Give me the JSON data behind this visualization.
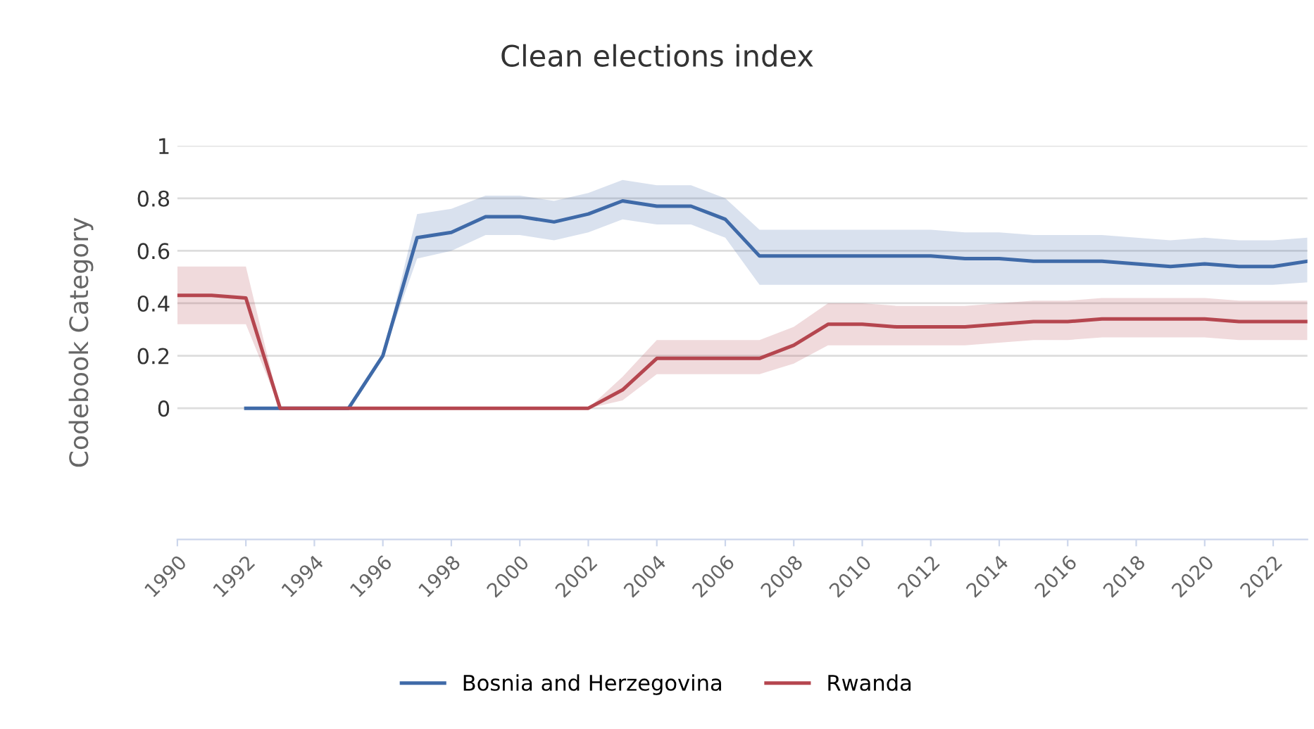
{
  "chart_data": {
    "type": "line",
    "title": "Clean elections index",
    "ylabel": "Codebook Category",
    "x": [
      1990,
      1991,
      1992,
      1993,
      1994,
      1995,
      1996,
      1997,
      1998,
      1999,
      2000,
      2001,
      2002,
      2003,
      2004,
      2005,
      2006,
      2007,
      2008,
      2009,
      2010,
      2011,
      2012,
      2013,
      2014,
      2015,
      2016,
      2017,
      2018,
      2019,
      2020,
      2021,
      2022,
      2023
    ],
    "xlim": [
      1990,
      2023
    ],
    "xticks": [
      1990,
      1992,
      1994,
      1996,
      1998,
      2000,
      2002,
      2004,
      2006,
      2008,
      2010,
      2012,
      2014,
      2016,
      2018,
      2020,
      2022
    ],
    "ylim": [
      -0.5,
      1
    ],
    "yticks": [
      0,
      0.2,
      0.4,
      0.6,
      0.8,
      1
    ],
    "grid": "y",
    "legend": "bottom",
    "marker": "none",
    "line_style": "solid",
    "series": [
      {
        "name": "Bosnia and Herzegovina",
        "color": "#3f6aa8",
        "values": [
          null,
          null,
          0,
          0,
          0,
          0,
          0.2,
          0.65,
          0.67,
          0.73,
          0.73,
          0.71,
          0.74,
          0.79,
          0.77,
          0.77,
          0.72,
          0.58,
          0.58,
          0.58,
          0.58,
          0.58,
          0.58,
          0.57,
          0.57,
          0.56,
          0.56,
          0.56,
          0.55,
          0.54,
          0.55,
          0.54,
          0.54,
          0.56
        ],
        "lower": [
          null,
          null,
          0,
          0,
          0,
          0,
          0.2,
          0.57,
          0.6,
          0.66,
          0.66,
          0.64,
          0.67,
          0.72,
          0.7,
          0.7,
          0.65,
          0.47,
          0.47,
          0.47,
          0.47,
          0.47,
          0.47,
          0.47,
          0.47,
          0.47,
          0.47,
          0.47,
          0.47,
          0.47,
          0.47,
          0.47,
          0.47,
          0.48
        ],
        "upper": [
          null,
          null,
          0,
          0,
          0,
          0,
          0.2,
          0.74,
          0.76,
          0.81,
          0.81,
          0.79,
          0.82,
          0.87,
          0.85,
          0.85,
          0.8,
          0.68,
          0.68,
          0.68,
          0.68,
          0.68,
          0.68,
          0.67,
          0.67,
          0.66,
          0.66,
          0.66,
          0.65,
          0.64,
          0.65,
          0.64,
          0.64,
          0.65
        ]
      },
      {
        "name": "Rwanda",
        "color": "#b5464f",
        "values": [
          0.43,
          0.43,
          0.42,
          0,
          0,
          0,
          0,
          0,
          0,
          0,
          0,
          0,
          0,
          0.07,
          0.19,
          0.19,
          0.19,
          0.19,
          0.24,
          0.32,
          0.32,
          0.31,
          0.31,
          0.31,
          0.32,
          0.33,
          0.33,
          0.34,
          0.34,
          0.34,
          0.34,
          0.33,
          0.33,
          0.33
        ],
        "lower": [
          0.32,
          0.32,
          0.32,
          0,
          0,
          0,
          0,
          0,
          0,
          0,
          0,
          0,
          0,
          0.03,
          0.13,
          0.13,
          0.13,
          0.13,
          0.17,
          0.24,
          0.24,
          0.24,
          0.24,
          0.24,
          0.25,
          0.26,
          0.26,
          0.27,
          0.27,
          0.27,
          0.27,
          0.26,
          0.26,
          0.26
        ],
        "upper": [
          0.54,
          0.54,
          0.54,
          0,
          0,
          0,
          0,
          0,
          0,
          0,
          0,
          0,
          0,
          0.12,
          0.26,
          0.26,
          0.26,
          0.26,
          0.31,
          0.4,
          0.4,
          0.39,
          0.39,
          0.39,
          0.4,
          0.41,
          0.41,
          0.42,
          0.42,
          0.42,
          0.42,
          0.41,
          0.41,
          0.41
        ]
      }
    ]
  }
}
